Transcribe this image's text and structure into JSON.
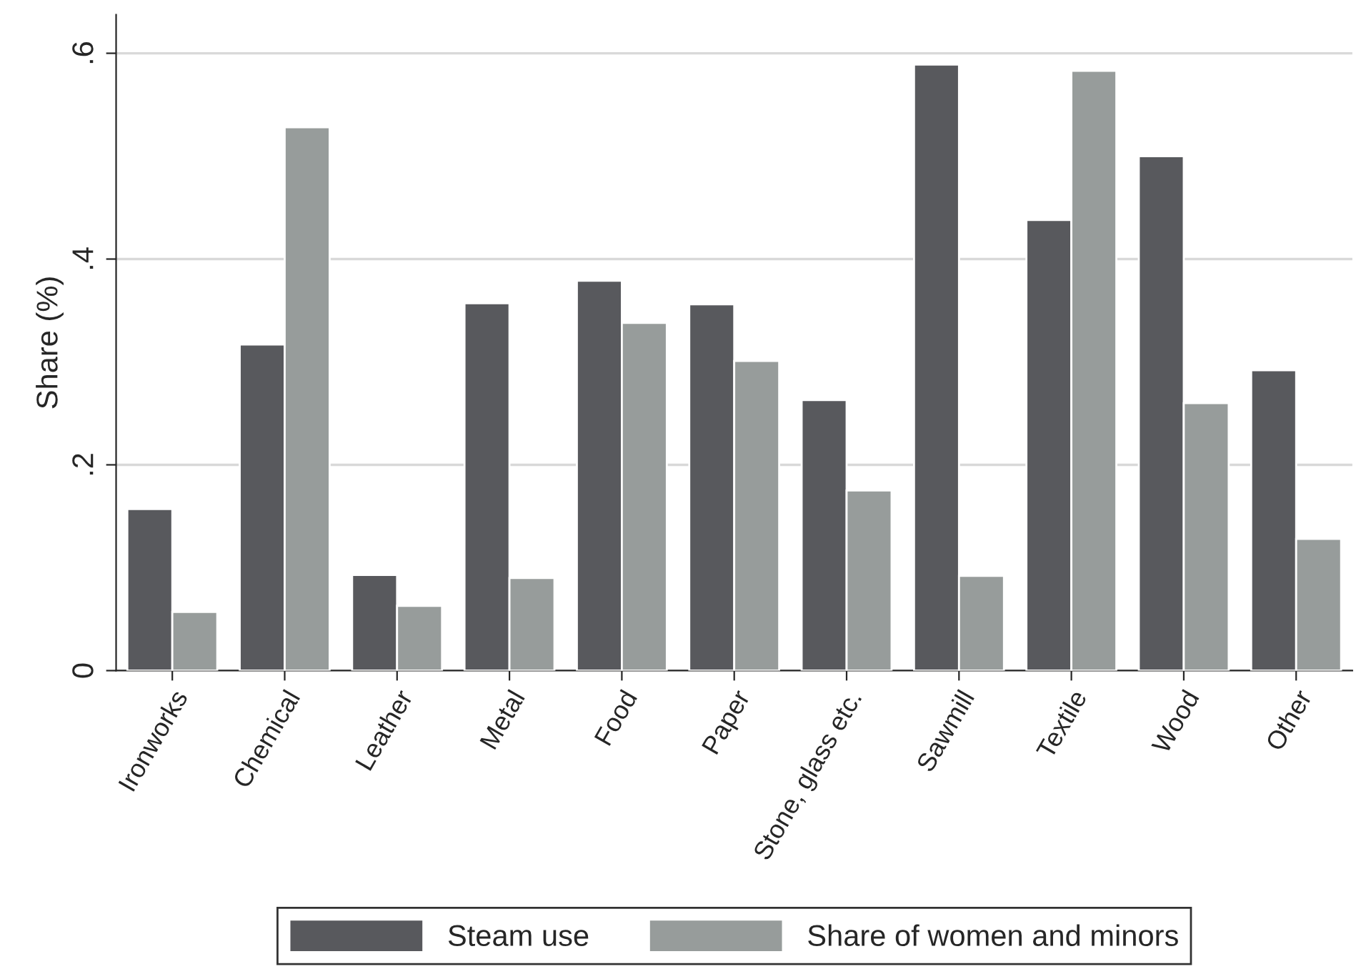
{
  "chart_data": {
    "type": "bar",
    "ylabel": "Share (%)",
    "categories": [
      "Ironworks",
      "Chemical",
      "Leather",
      "Metal",
      "Food",
      "Paper",
      "Stone, glass etc.",
      "Sawmill",
      "Textile",
      "Wood",
      "Other"
    ],
    "series": [
      {
        "name": "Steam use",
        "color": "#58595d",
        "values": [
          0.157,
          0.317,
          0.093,
          0.357,
          0.379,
          0.356,
          0.263,
          0.589,
          0.438,
          0.5,
          0.292
        ]
      },
      {
        "name": "Share of women and minors",
        "color": "#979c9b",
        "values": [
          0.057,
          0.528,
          0.063,
          0.09,
          0.338,
          0.301,
          0.175,
          0.092,
          0.583,
          0.26,
          0.128
        ]
      }
    ],
    "ylim": [
      0,
      0.6375
    ],
    "yticks": [
      {
        "value": 0,
        "label": "0"
      },
      {
        "value": 0.2,
        "label": ".2"
      },
      {
        "value": 0.4,
        "label": ".4"
      },
      {
        "value": 0.6,
        "label": ".6"
      }
    ],
    "grid": "y",
    "legend": "bottom"
  }
}
